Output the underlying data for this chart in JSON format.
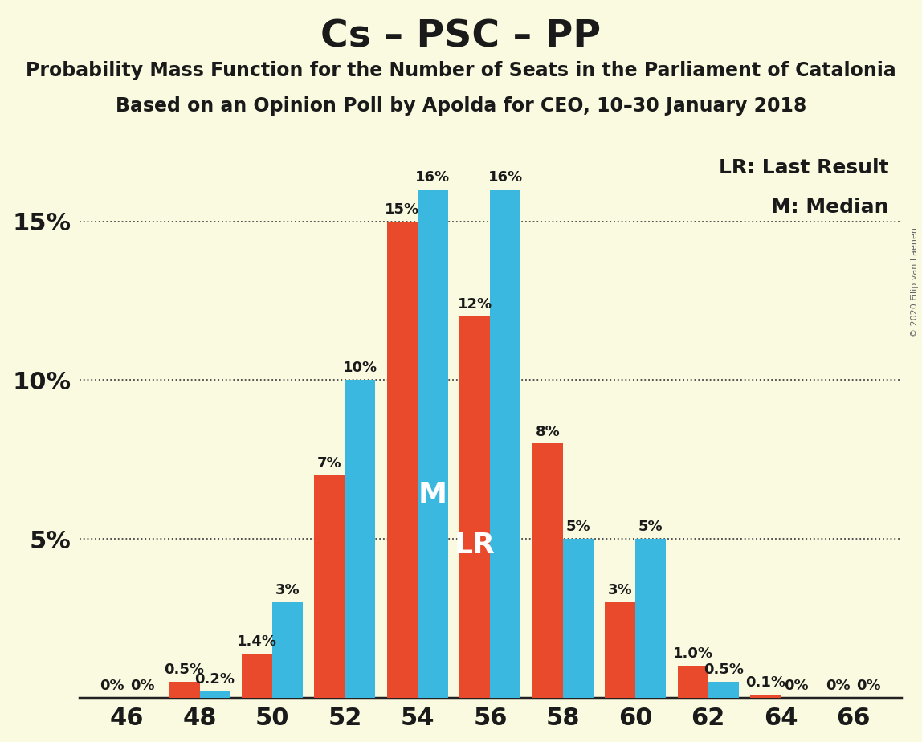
{
  "title": "Cs – PSC – PP",
  "subtitle1": "Probability Mass Function for the Number of Seats in the Parliament of Catalonia",
  "subtitle2": "Based on an Opinion Poll by Apolda for CEO, 10–30 January 2018",
  "copyright": "© 2020 Filip van Laenen",
  "seats": [
    46,
    48,
    50,
    52,
    54,
    56,
    58,
    60,
    62,
    64,
    66
  ],
  "blue_values": [
    0.0,
    0.2,
    3.0,
    10.0,
    16.0,
    16.0,
    5.0,
    5.0,
    0.5,
    0.0,
    0.0
  ],
  "red_values": [
    0.0,
    0.5,
    1.4,
    7.0,
    15.0,
    12.0,
    8.0,
    3.0,
    1.0,
    0.1,
    0.0
  ],
  "blue_labels": [
    "0%",
    "0.2%",
    "3%",
    "10%",
    "16%",
    "16%",
    "5%",
    "5%",
    "0.5%",
    "0%",
    "0%"
  ],
  "red_labels": [
    "0%",
    "0.5%",
    "1.4%",
    "7%",
    "15%",
    "12%",
    "8%",
    "3%",
    "1.0%",
    "0.1%",
    "0%"
  ],
  "median_seat": 54,
  "lr_seat": 56,
  "blue_color": "#3BB8E0",
  "red_color": "#E84A2B",
  "bg_color": "#FAFAE0",
  "text_color": "#1A1A1A",
  "legend_lr": "LR: Last Result",
  "legend_m": "M: Median",
  "ylim": [
    0,
    17.5
  ],
  "yticks": [
    5,
    10,
    15
  ],
  "ytick_labels": [
    "5%",
    "10%",
    "15%"
  ],
  "title_fontsize": 34,
  "subtitle_fontsize": 17,
  "tick_fontsize": 22,
  "label_fontsize": 13,
  "legend_fontsize": 18,
  "annotation_fontsize": 26,
  "copyright_fontsize": 8
}
